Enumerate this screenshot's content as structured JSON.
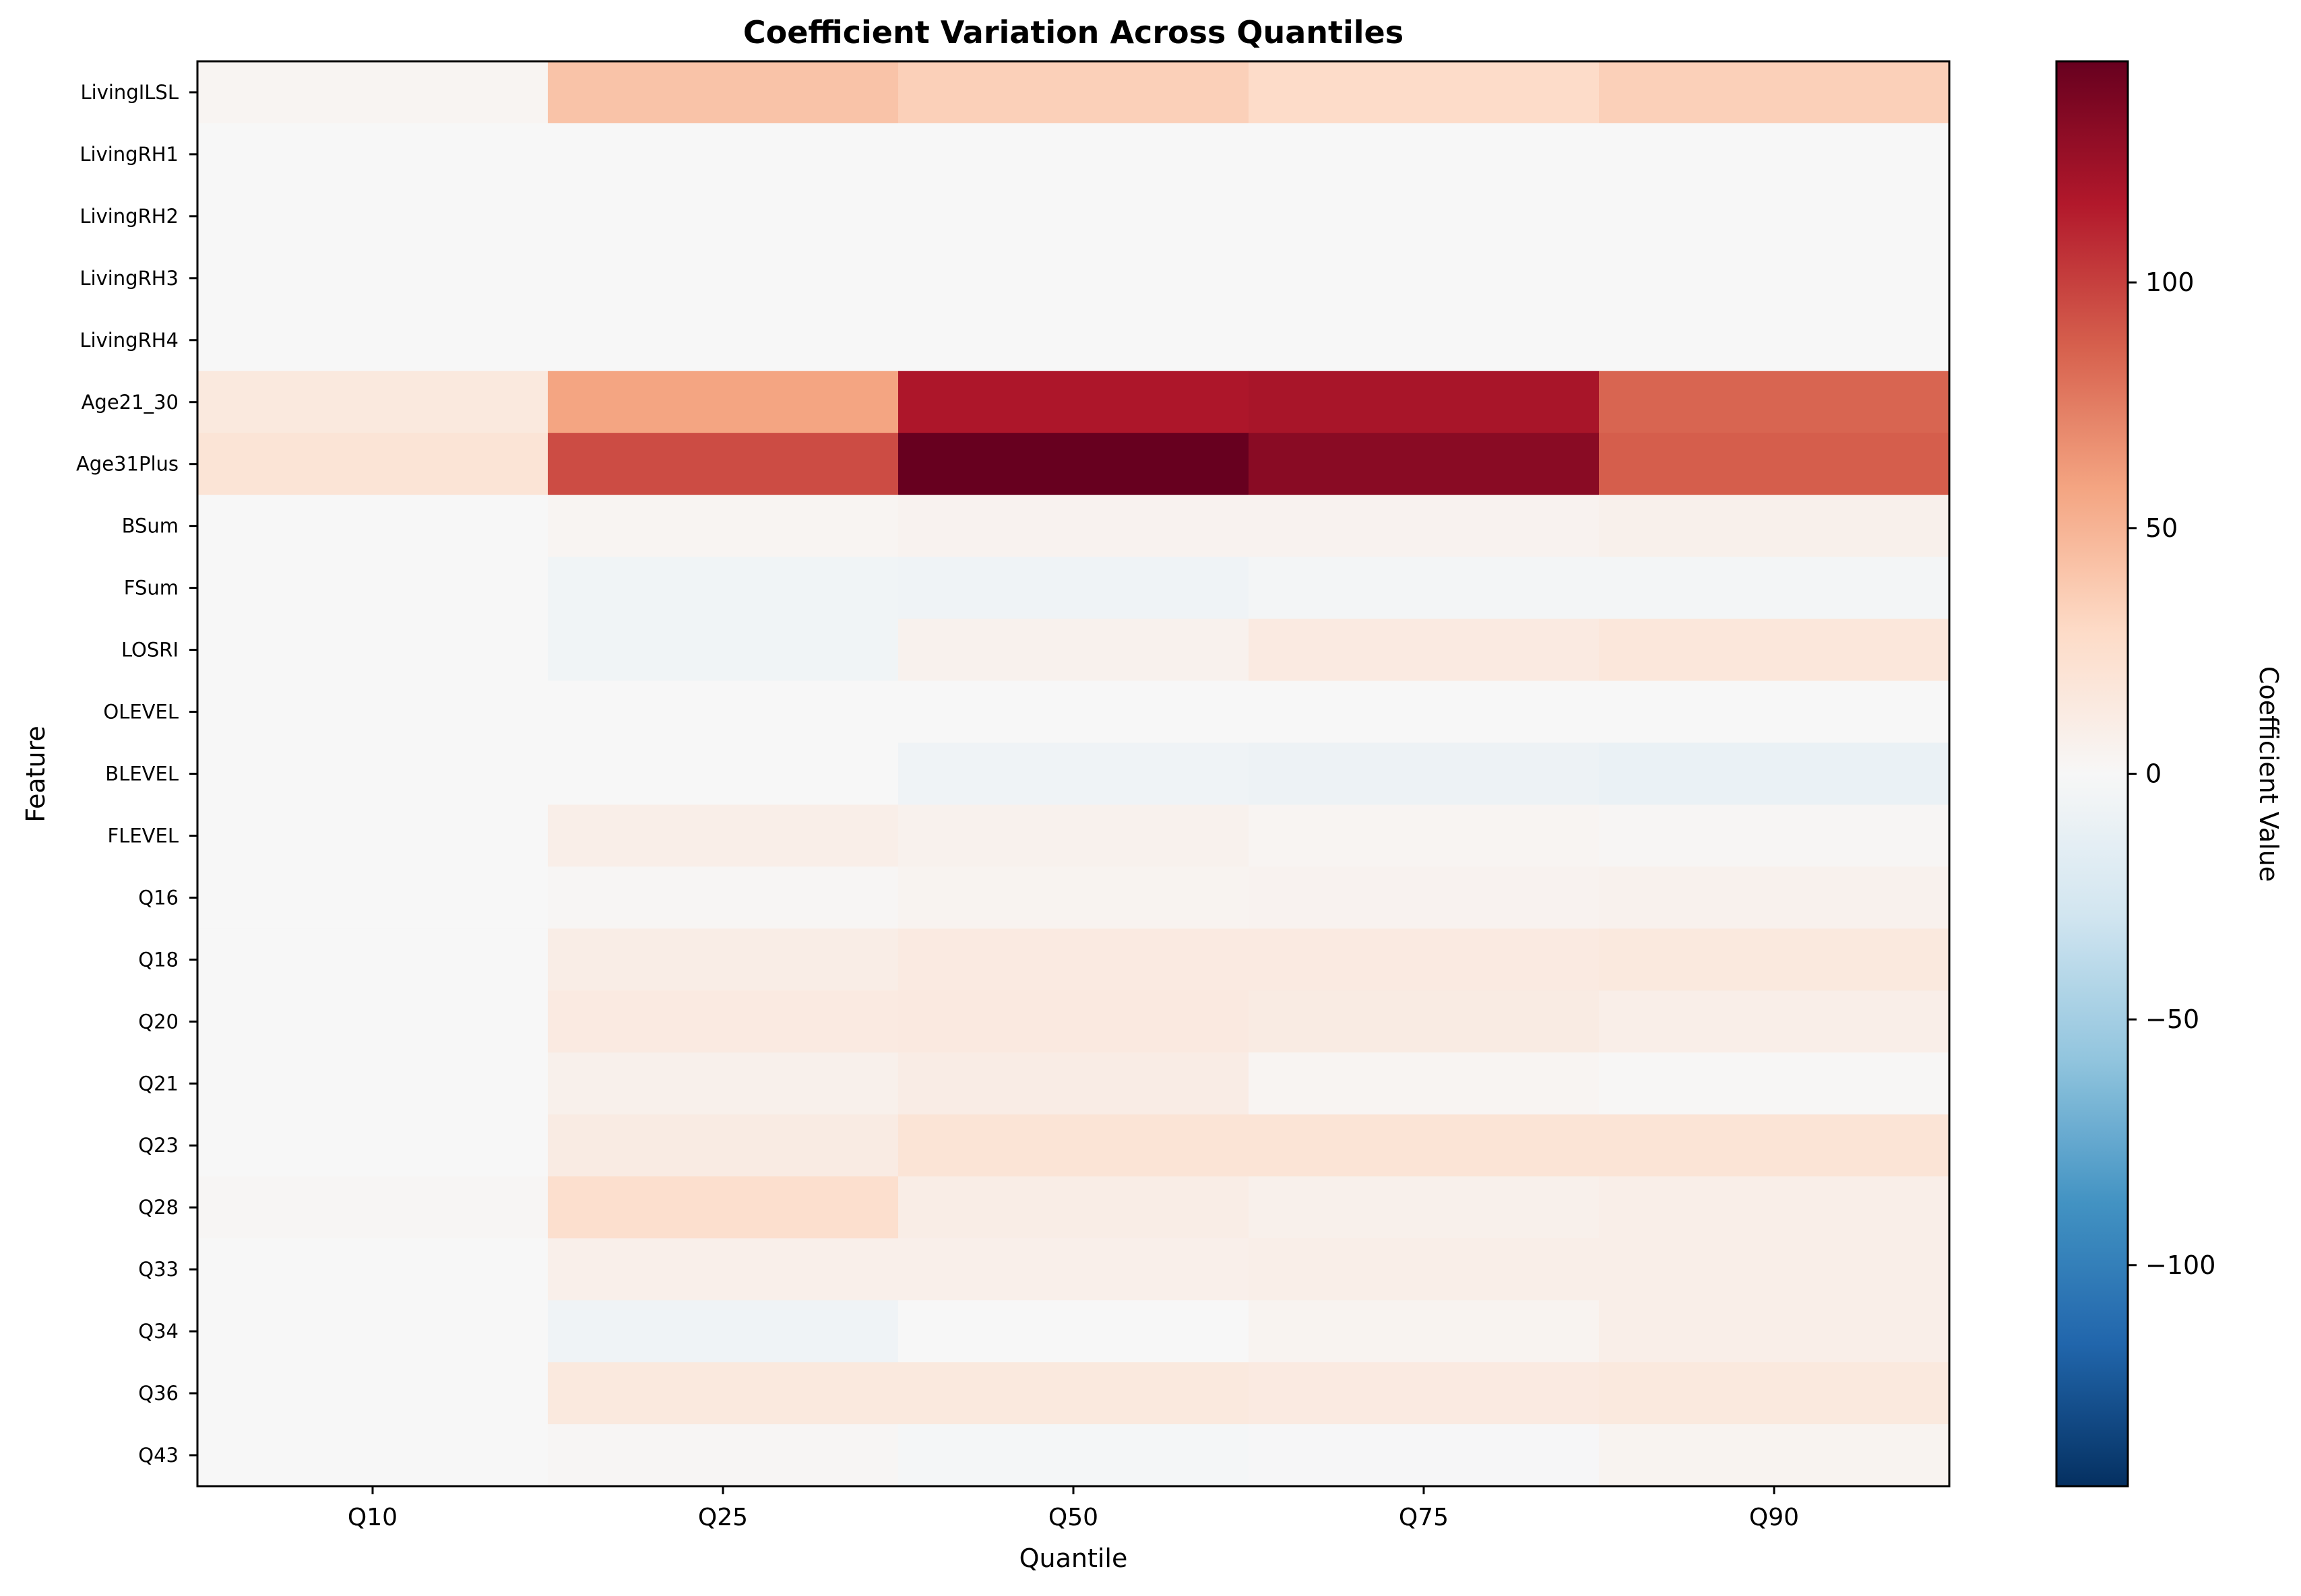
{
  "chart_data": {
    "type": "heatmap",
    "title": "Coefficient Variation Across Quantiles",
    "xlabel": "Quantile",
    "ylabel": "Feature",
    "colorbar_label": "Coefficient Value",
    "colormap": "RdBu_r",
    "vmin": -145,
    "vmax": 145,
    "colorbar_ticks": [
      100,
      50,
      0,
      -50,
      -100
    ],
    "colorbar_tick_labels": [
      "100",
      "50",
      "0",
      "−50",
      "−100"
    ],
    "x_categories": [
      "Q10",
      "Q25",
      "Q50",
      "Q75",
      "Q90"
    ],
    "y_categories": [
      "LivingILSL",
      "LivingRH1",
      "LivingRH2",
      "LivingRH3",
      "LivingRH4",
      "Age21_30",
      "Age31Plus",
      "BSum",
      "FSum",
      "LOSRI",
      "OLEVEL",
      "BLEVEL",
      "FLEVEL",
      "Q16",
      "Q18",
      "Q20",
      "Q21",
      "Q23",
      "Q28",
      "Q33",
      "Q34",
      "Q36",
      "Q43"
    ],
    "values": [
      [
        3,
        42,
        35,
        28,
        35
      ],
      [
        0,
        0,
        0,
        0,
        0
      ],
      [
        0,
        0,
        0,
        0,
        0
      ],
      [
        0,
        0,
        0,
        0,
        0
      ],
      [
        0,
        0,
        0,
        0,
        0
      ],
      [
        15,
        58,
        118,
        120,
        85
      ],
      [
        20,
        95,
        145,
        132,
        88
      ],
      [
        0,
        3,
        5,
        5,
        7
      ],
      [
        0,
        -5,
        -6,
        -3,
        -3
      ],
      [
        0,
        -5,
        6,
        13,
        17
      ],
      [
        0,
        0,
        0,
        0,
        0
      ],
      [
        0,
        0,
        -6,
        -8,
        -10
      ],
      [
        0,
        9,
        6,
        3,
        2
      ],
      [
        0,
        2,
        4,
        5,
        6
      ],
      [
        0,
        10,
        13,
        13,
        15
      ],
      [
        0,
        13,
        14,
        12,
        9
      ],
      [
        0,
        7,
        11,
        3,
        1
      ],
      [
        0,
        12,
        20,
        20,
        20
      ],
      [
        2,
        25,
        10,
        7,
        9
      ],
      [
        0,
        8,
        8,
        9,
        9
      ],
      [
        0,
        -6,
        0,
        4,
        9
      ],
      [
        0,
        15,
        15,
        13,
        15
      ],
      [
        0,
        2,
        -2,
        -1,
        4
      ]
    ],
    "grid": false,
    "legend": "colorbar-right"
  }
}
